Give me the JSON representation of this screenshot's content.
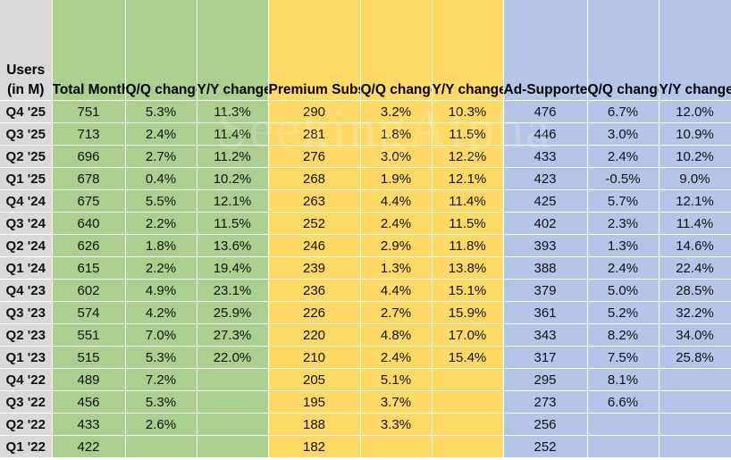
{
  "table": {
    "headers": [
      "Users\n(in M)",
      "Total Monthly Active Users (MAUs)",
      "Q/Q change",
      "Y/Y change",
      "Premium Subscribers",
      "Q/Q change",
      "Y/Y change",
      "Ad-Supported MAUs",
      "Q/Q change",
      "Y/Y change"
    ],
    "rows": [
      [
        "Q4 '25",
        "751",
        "5.3%",
        "11.3%",
        "290",
        "3.2%",
        "10.3%",
        "476",
        "6.7%",
        "12.0%"
      ],
      [
        "Q3 '25",
        "713",
        "2.4%",
        "11.4%",
        "281",
        "1.8%",
        "11.5%",
        "446",
        "3.0%",
        "10.9%"
      ],
      [
        "Q2 '25",
        "696",
        "2.7%",
        "11.2%",
        "276",
        "3.0%",
        "12.2%",
        "433",
        "2.4%",
        "10.2%"
      ],
      [
        "Q1 '25",
        "678",
        "0.4%",
        "10.2%",
        "268",
        "1.9%",
        "12.1%",
        "423",
        "-0.5%",
        "9.0%"
      ],
      [
        "Q4 '24",
        "675",
        "5.5%",
        "12.1%",
        "263",
        "4.4%",
        "11.4%",
        "425",
        "5.7%",
        "12.1%"
      ],
      [
        "Q3 '24",
        "640",
        "2.2%",
        "11.5%",
        "252",
        "2.4%",
        "11.5%",
        "402",
        "2.3%",
        "11.4%"
      ],
      [
        "Q2 '24",
        "626",
        "1.8%",
        "13.6%",
        "246",
        "2.9%",
        "11.8%",
        "393",
        "1.3%",
        "14.6%"
      ],
      [
        "Q1 '24",
        "615",
        "2.2%",
        "19.4%",
        "239",
        "1.3%",
        "13.8%",
        "388",
        "2.4%",
        "22.4%"
      ],
      [
        "Q4 '23",
        "602",
        "4.9%",
        "23.1%",
        "236",
        "4.4%",
        "15.1%",
        "379",
        "5.0%",
        "28.5%"
      ],
      [
        "Q3 '23",
        "574",
        "4.2%",
        "25.9%",
        "226",
        "2.7%",
        "15.9%",
        "361",
        "5.2%",
        "32.2%"
      ],
      [
        "Q2 '23",
        "551",
        "7.0%",
        "27.3%",
        "220",
        "4.8%",
        "17.0%",
        "343",
        "8.2%",
        "34.0%"
      ],
      [
        "Q1 '23",
        "515",
        "5.3%",
        "22.0%",
        "210",
        "2.4%",
        "15.4%",
        "317",
        "7.5%",
        "25.8%"
      ],
      [
        "Q4 '22",
        "489",
        "7.2%",
        "",
        "205",
        "5.1%",
        "",
        "295",
        "8.1%",
        ""
      ],
      [
        "Q3 '22",
        "456",
        "5.3%",
        "",
        "195",
        "3.7%",
        "",
        "273",
        "6.6%",
        ""
      ],
      [
        "Q2 '22",
        "433",
        "2.6%",
        "",
        "188",
        "3.3%",
        "",
        "256",
        "",
        ""
      ],
      [
        "Q1 '22",
        "422",
        "",
        "",
        "182",
        "",
        "",
        "252",
        "",
        ""
      ]
    ]
  },
  "colors": {
    "label_bg": "#d9d9d9",
    "total_mau_bg": "#a9d08e",
    "premium_bg": "#ffd966",
    "ad_supported_bg": "#b4c6e7"
  },
  "watermark": "SeekingAlpha"
}
